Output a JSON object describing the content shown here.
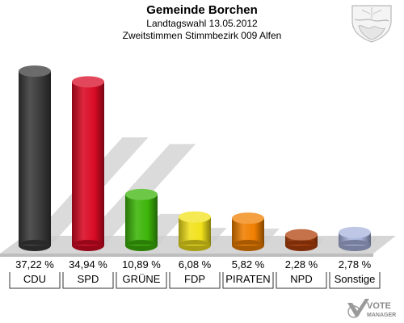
{
  "header": {
    "title": "Gemeinde Borchen",
    "subtitle1": "Landtagswahl 13.05.2012",
    "subtitle2": "Zweitstimmen Stimmbezirk 009 Alfen"
  },
  "branding": {
    "watermark_line1": "VOTE",
    "watermark_line2": "MANAGER"
  },
  "chart_data": {
    "type": "bar",
    "title": "Gemeinde Borchen",
    "categories": [
      "CDU",
      "SPD",
      "GRÜNE",
      "FDP",
      "PIRATEN",
      "NPD",
      "Sonstige"
    ],
    "values": [
      37.22,
      34.94,
      10.89,
      6.08,
      5.82,
      2.28,
      2.78
    ],
    "value_labels": [
      "37,22 %",
      "34,94 %",
      "10,89 %",
      "6,08 %",
      "5,82 %",
      "2,28 %",
      "2,78 %"
    ],
    "colors": [
      "#3a3a3a",
      "#d90a24",
      "#3db50a",
      "#f2e21b",
      "#f07f00",
      "#b2420c",
      "#a9b4dd"
    ],
    "ylim": [
      0,
      40
    ],
    "grid": false,
    "legend": "none"
  }
}
